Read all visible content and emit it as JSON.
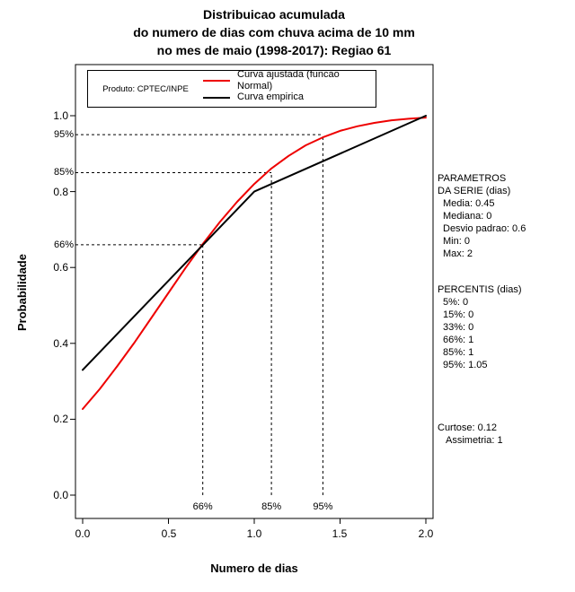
{
  "title": {
    "line1": "Distribuicao acumulada",
    "line2": "do numero de dias com chuva acima de 10 mm",
    "line3": "no mes de maio (1998-2017): Regiao 61"
  },
  "legend": {
    "product": "Produto: CPTEC/INPE",
    "entries": [
      {
        "label": "Curva ajustada (funcao Normal)",
        "color": "#ee0000"
      },
      {
        "label": "Curva empirica",
        "color": "#000000"
      }
    ]
  },
  "chart_data": {
    "type": "line",
    "title": "Distribuicao acumulada do numero de dias com chuva acima de 10 mm no mes de maio (1998-2017): Regiao 61",
    "xlabel": "Numero de dias",
    "ylabel": "Probabilidade",
    "xlim": [
      0,
      2
    ],
    "ylim": [
      0,
      1.05
    ],
    "grid": false,
    "legend_position": "top-inside",
    "x_ticks": [
      "0.0",
      "0.5",
      "1.0",
      "1.5",
      "2.0"
    ],
    "x_tick_values": [
      0,
      0.5,
      1.0,
      1.5,
      2.0
    ],
    "y_ticks": [
      "0.0",
      "0.2",
      "0.4",
      "0.6",
      "0.8",
      "1.0"
    ],
    "y_tick_values": [
      0,
      0.2,
      0.4,
      0.6,
      0.8,
      1.0
    ],
    "series": [
      {
        "name": "Curva ajustada (funcao Normal)",
        "color": "#ee0000",
        "x": [
          0,
          0.1,
          0.2,
          0.3,
          0.4,
          0.5,
          0.6,
          0.7,
          0.8,
          0.9,
          1.0,
          1.1,
          1.2,
          1.3,
          1.4,
          1.5,
          1.6,
          1.7,
          1.8,
          1.9,
          2.0
        ],
        "y": [
          0.227,
          0.28,
          0.339,
          0.401,
          0.467,
          0.533,
          0.599,
          0.662,
          0.72,
          0.773,
          0.82,
          0.861,
          0.894,
          0.922,
          0.943,
          0.96,
          0.972,
          0.981,
          0.988,
          0.992,
          0.995
        ]
      },
      {
        "name": "Curva empirica",
        "color": "#000000",
        "x": [
          0,
          1.0,
          2.0
        ],
        "y": [
          0.33,
          0.8,
          1.0
        ]
      }
    ],
    "guides": [
      {
        "label": "66%",
        "x": 0.7,
        "y": 0.66
      },
      {
        "label": "85%",
        "x": 1.1,
        "y": 0.85
      },
      {
        "label": "95%",
        "x": 1.4,
        "y": 0.95
      }
    ]
  },
  "stats": {
    "params_header1": "PARAMETROS",
    "params_header2": "DA SERIE (dias)",
    "series": [
      "Media: 0.45",
      "Mediana: 0",
      "Desvio padrao: 0.6",
      "Min: 0",
      "Max: 2"
    ],
    "percentis_header": "PERCENTIS (dias)",
    "percentis": [
      "5%: 0",
      "15%: 0",
      "33%: 0",
      "66%: 1",
      "85%: 1",
      "95%: 1.05"
    ],
    "curtose": "Curtose: 0.12",
    "assimetria": "Assimetria: 1"
  }
}
